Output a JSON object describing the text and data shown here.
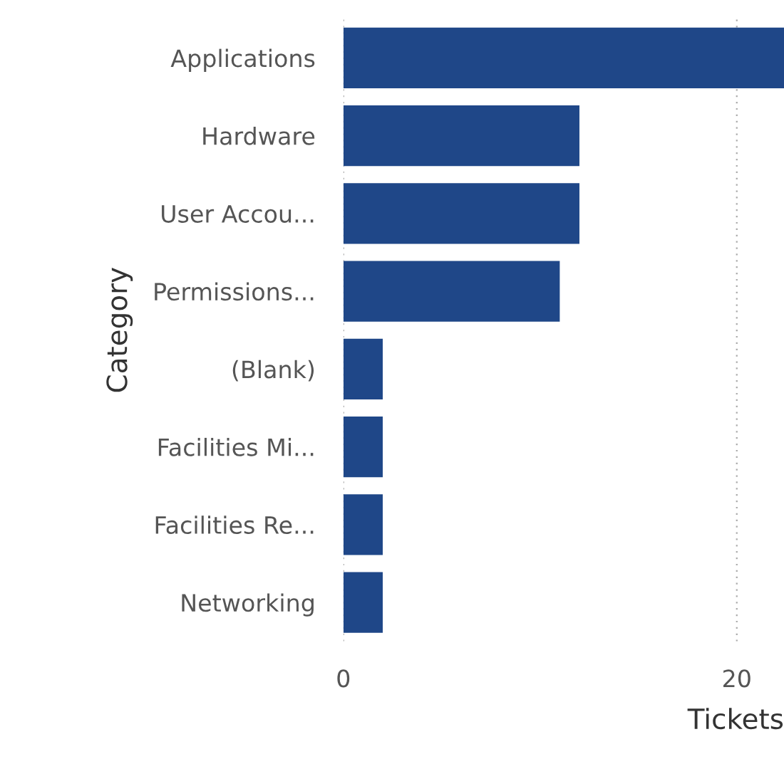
{
  "chart_data": {
    "type": "bar",
    "orientation": "horizontal",
    "xlabel": "Tickets",
    "ylabel": "Category",
    "categories": [
      "Applications",
      "Hardware",
      "User Accou...",
      "Permissions...",
      "(Blank)",
      "Facilities Mi...",
      "Facilities Re...",
      "Networking"
    ],
    "values": [
      22.4,
      12,
      12,
      11,
      2,
      2,
      2,
      2
    ],
    "color": "#1f4788",
    "xlim": [
      0,
      22.4
    ],
    "xticks": [
      0,
      20
    ],
    "grid": "x"
  }
}
